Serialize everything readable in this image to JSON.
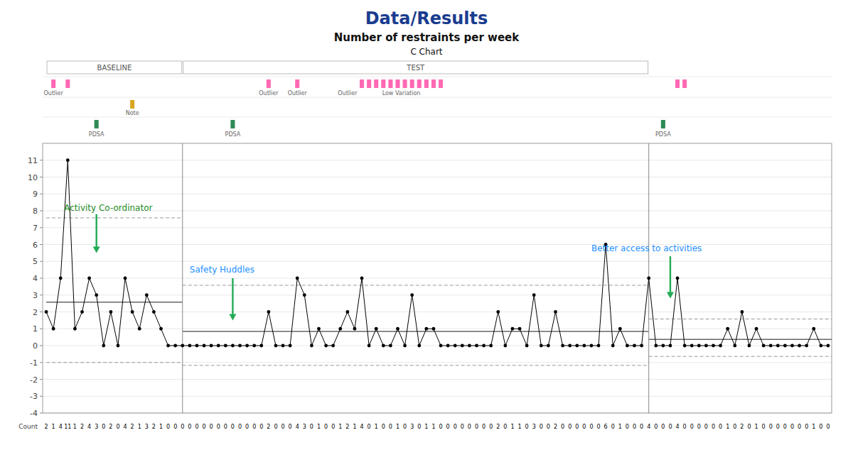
{
  "chart_data": {
    "type": "line",
    "title": "Data/Results",
    "subtitle": "Number of restraints per week",
    "caption": "C Chart",
    "x": [
      0,
      1,
      2,
      3,
      4,
      5,
      6,
      7,
      8,
      9,
      10,
      11,
      12,
      13,
      14,
      15,
      16,
      17,
      18,
      19,
      20,
      21,
      22,
      23,
      24,
      25,
      26,
      27,
      28,
      29,
      30,
      31,
      32,
      33,
      34,
      35,
      36,
      37,
      38,
      39,
      40,
      41,
      42,
      43,
      44,
      45,
      46,
      47,
      48,
      49,
      50,
      51,
      52,
      53,
      54,
      55,
      56,
      57,
      58,
      59,
      60,
      61,
      62,
      63,
      64,
      65,
      66,
      67,
      68,
      69,
      70,
      71,
      72,
      73,
      74,
      75,
      76,
      77,
      78,
      79,
      80,
      81,
      82,
      83,
      84,
      85,
      86,
      87,
      88,
      89,
      90,
      91,
      92,
      93,
      94,
      95,
      96,
      97,
      98,
      99,
      100,
      101,
      102,
      103,
      104,
      105,
      106,
      107,
      108,
      109
    ],
    "values": [
      2,
      1,
      4,
      11,
      1,
      2,
      4,
      3,
      0,
      2,
      0,
      4,
      2,
      1,
      3,
      2,
      1,
      0,
      0,
      0,
      0,
      0,
      0,
      0,
      0,
      0,
      0,
      0,
      0,
      0,
      0,
      2,
      0,
      0,
      0,
      4,
      3,
      0,
      1,
      0,
      0,
      1,
      2,
      1,
      4,
      0,
      1,
      0,
      0,
      1,
      0,
      3,
      0,
      1,
      1,
      0,
      0,
      0,
      0,
      0,
      0,
      0,
      0,
      2,
      0,
      1,
      1,
      0,
      3,
      0,
      0,
      2,
      0,
      0,
      0,
      0,
      0,
      0,
      6,
      0,
      1,
      0,
      0,
      0,
      4,
      0,
      0,
      0,
      4,
      0,
      0,
      0,
      0,
      0,
      0,
      1,
      0,
      2,
      0,
      1,
      0,
      0,
      0,
      0,
      0,
      0,
      0,
      1,
      0,
      0
    ],
    "values_label": "Count",
    "color": "#000000",
    "marker": "circle",
    "data_labels": true,
    "xlim": [
      -0.5,
      109.5
    ],
    "ylim": [
      -4,
      12
    ],
    "yticks": [
      -4,
      -3,
      -2,
      -1,
      0,
      1,
      2,
      3,
      4,
      5,
      6,
      7,
      8,
      9,
      10,
      11
    ],
    "tick_labels": "y",
    "grid": true,
    "phases": [
      {
        "name": "BASELINE",
        "start": 0,
        "end": 19,
        "mean": 2.58,
        "ucl": 7.58,
        "lcl": -1.0
      },
      {
        "name": "TEST",
        "start": 19,
        "end": 84,
        "mean": 0.84,
        "ucl": 3.58,
        "lcl": -1.17
      },
      {
        "start": 84,
        "end": 110,
        "mean": 0.37,
        "ucl": 1.58,
        "lcl": -0.64
      }
    ],
    "annotations": [
      {
        "text": "Activity Co-ordinator",
        "x": 2.5,
        "y": 8.0,
        "color": "#228B22",
        "arrow_x": 7,
        "arrow_from": 7.8,
        "arrow_to": 5.5,
        "arrow_color": "#22aa55"
      },
      {
        "text": "Safety Huddles",
        "x": 20,
        "y": 4.35,
        "color": "#1E90FF",
        "arrow_x": 26,
        "arrow_from": 4.0,
        "arrow_to": 1.5,
        "arrow_color": "#22aa55"
      },
      {
        "text": "Better access to activities",
        "x": 76,
        "y": 5.6,
        "color": "#1E90FF",
        "arrow_x": 87,
        "arrow_from": 5.3,
        "arrow_to": 2.8,
        "arrow_color": "#22aa55"
      }
    ],
    "outliers": {
      "color": "#FF69B4",
      "x": [
        1,
        3,
        31,
        35,
        44,
        45,
        46,
        47,
        48,
        49,
        50,
        51,
        52,
        53,
        54,
        55,
        88,
        89
      ]
    },
    "outlier_labels": [
      {
        "text": "Outlier",
        "x": 1
      },
      {
        "text": "Outlier",
        "x": 31
      },
      {
        "text": "Outlier",
        "x": 35
      },
      {
        "text": "Low Variation",
        "x": 49.5
      },
      {
        "text": "Outlier",
        "x": 42
      }
    ],
    "notes": {
      "label": "Note",
      "color": "#DAA520",
      "x": [
        12
      ]
    },
    "pdsa": {
      "label": "PDSA",
      "color": "#2e8b57",
      "x": [
        7,
        26,
        86
      ]
    }
  }
}
